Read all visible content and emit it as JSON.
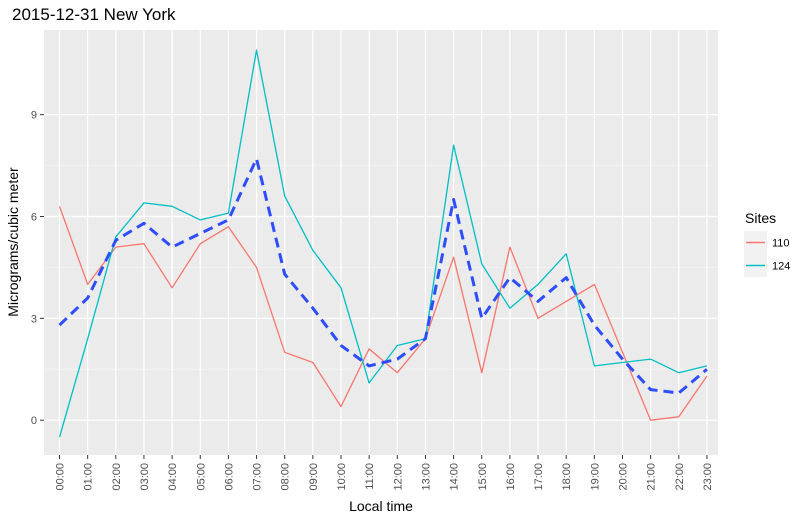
{
  "chart_data": {
    "type": "line",
    "title": "2015-12-31 New York",
    "xlabel": "Local time",
    "ylabel": "Micrograms/cubic meter",
    "categories": [
      "00:00",
      "01:00",
      "02:00",
      "03:00",
      "04:00",
      "05:00",
      "06:00",
      "07:00",
      "08:00",
      "09:00",
      "10:00",
      "11:00",
      "12:00",
      "13:00",
      "14:00",
      "15:00",
      "16:00",
      "17:00",
      "18:00",
      "19:00",
      "20:00",
      "21:00",
      "22:00",
      "23:00"
    ],
    "ylim": [
      -1,
      12
    ],
    "yticks": [
      0,
      3,
      6,
      9
    ],
    "grid": true,
    "legend": {
      "title": "Sites",
      "position": "right"
    },
    "series": [
      {
        "name": "110",
        "color": "#F8766D",
        "style": "solid",
        "values": [
          6.3,
          4.0,
          5.1,
          5.2,
          3.9,
          5.2,
          5.7,
          4.5,
          2.0,
          1.7,
          0.4,
          2.1,
          1.4,
          2.4,
          4.8,
          1.4,
          5.1,
          3.0,
          3.5,
          4.0,
          2.0,
          0.0,
          0.1,
          1.3
        ]
      },
      {
        "name": "124",
        "color": "#00BFC4",
        "style": "solid",
        "values": [
          -0.5,
          2.4,
          5.4,
          6.4,
          6.3,
          5.9,
          6.1,
          10.9,
          6.6,
          5.0,
          3.9,
          1.1,
          2.2,
          2.4,
          8.1,
          4.6,
          3.3,
          4.0,
          4.9,
          1.6,
          1.7,
          1.8,
          1.4,
          1.6
        ]
      },
      {
        "name": "",
        "color": "#2E4DFF",
        "style": "dashed",
        "in_legend": false,
        "values": [
          2.8,
          3.6,
          5.3,
          5.8,
          5.1,
          5.5,
          5.9,
          7.7,
          4.3,
          3.3,
          2.2,
          1.6,
          1.8,
          2.4,
          6.5,
          3.0,
          4.2,
          3.5,
          4.2,
          2.8,
          1.8,
          0.9,
          0.8,
          1.5
        ]
      }
    ]
  }
}
